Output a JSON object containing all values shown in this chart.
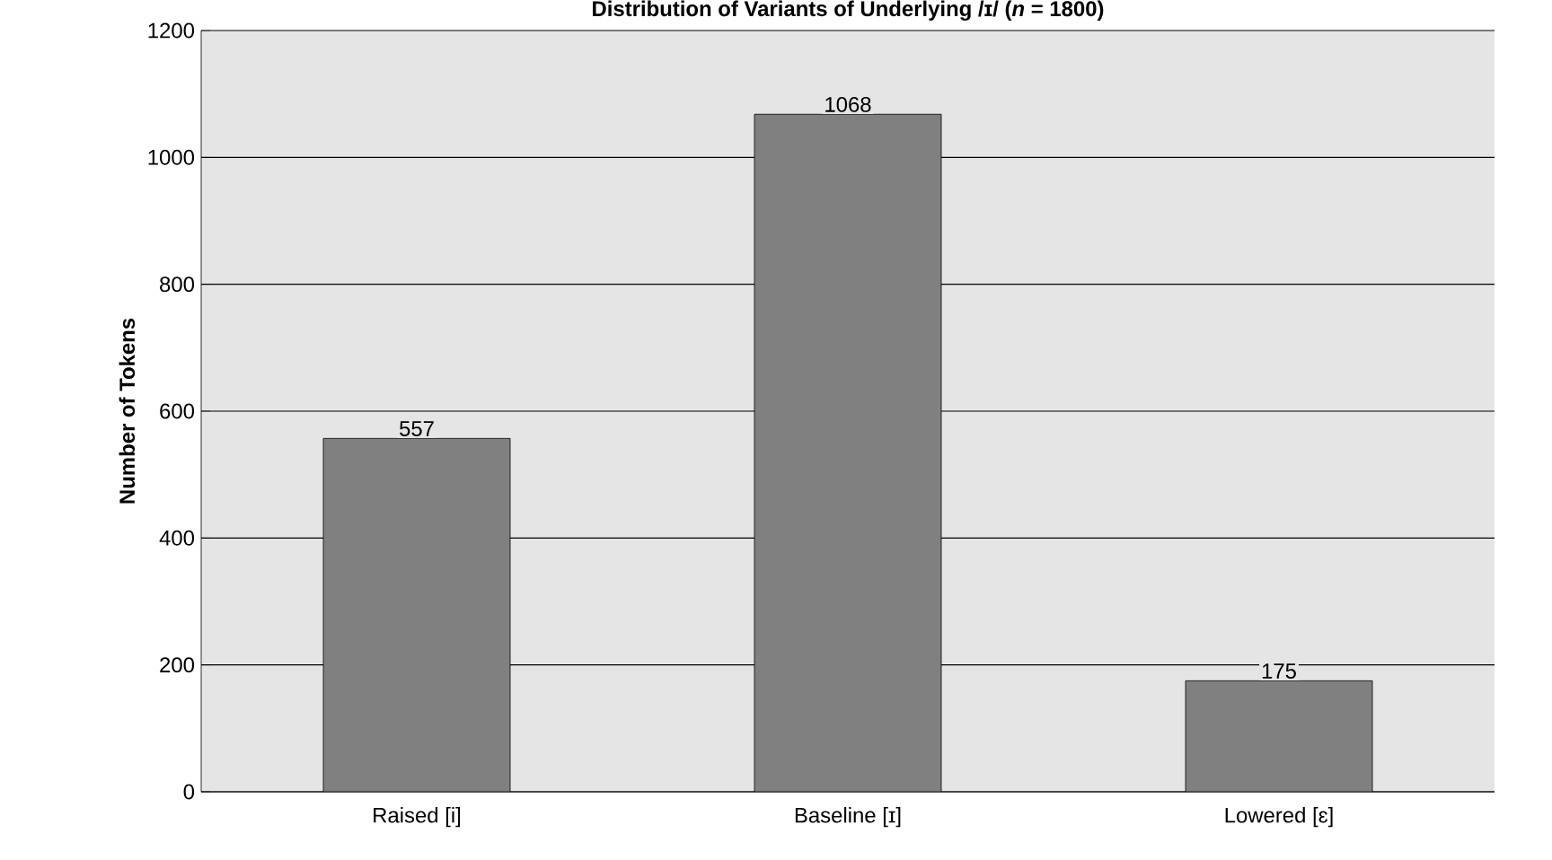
{
  "chart_data": {
    "type": "bar",
    "title": "Distribution of Variants of Underlying /ɪ/ (*n* = 1800)",
    "ylabel": "Number of Tokens",
    "categories": [
      "Raised [i]",
      "Baseline [ɪ]",
      "Lowered [ɛ]"
    ],
    "values": [
      557,
      1068,
      175
    ],
    "color": "#808080",
    "ylim": [
      0,
      1200
    ],
    "yticks": [
      0,
      200,
      400,
      600,
      800,
      1000,
      1200
    ],
    "grid": "y",
    "data_labels": true
  }
}
